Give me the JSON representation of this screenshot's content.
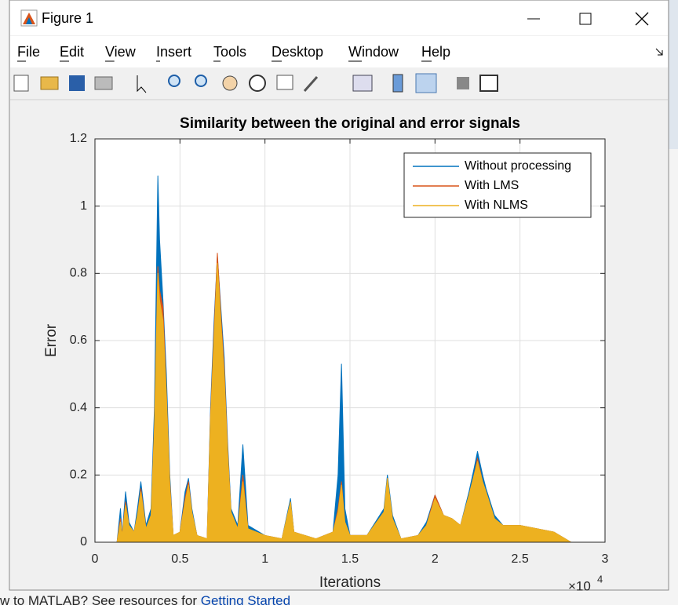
{
  "window": {
    "title": "Figure 1",
    "menu": [
      "File",
      "Edit",
      "View",
      "Insert",
      "Tools",
      "Desktop",
      "Window",
      "Help"
    ]
  },
  "background_text": {
    "prefix": "w to MATLAB? See resources for ",
    "link": "Getting Started"
  },
  "chart_data": {
    "type": "area",
    "title": "Similarity between the original and error signals",
    "x_label": "Iterations",
    "y_label": "Error",
    "x_multiplier": "×10",
    "x_exponent": "4",
    "xlim": [
      0,
      3
    ],
    "xticks": [
      0,
      0.5,
      1,
      1.5,
      2,
      2.5,
      3
    ],
    "ylim": [
      0,
      1.2
    ],
    "yticks": [
      0,
      0.2,
      0.4,
      0.6,
      0.8,
      1,
      1.2
    ],
    "grid": true,
    "legend": "upper right",
    "x": [
      0,
      0.13,
      0.15,
      0.16,
      0.18,
      0.2,
      0.23,
      0.25,
      0.27,
      0.3,
      0.33,
      0.35,
      0.37,
      0.38,
      0.4,
      0.42,
      0.44,
      0.46,
      0.5,
      0.53,
      0.55,
      0.57,
      0.6,
      0.66,
      0.68,
      0.7,
      0.72,
      0.74,
      0.76,
      0.78,
      0.8,
      0.84,
      0.87,
      0.9,
      1.0,
      1.1,
      1.15,
      1.17,
      1.3,
      1.4,
      1.43,
      1.45,
      1.47,
      1.5,
      1.6,
      1.7,
      1.72,
      1.75,
      1.8,
      1.9,
      1.95,
      2.0,
      2.05,
      2.1,
      2.15,
      2.2,
      2.23,
      2.25,
      2.28,
      2.3,
      2.35,
      2.4,
      2.5,
      2.6,
      2.7,
      2.8,
      3.0
    ],
    "series": [
      {
        "name": "Without processing",
        "color": "#0072BD",
        "values": [
          0,
          0,
          0.1,
          0.02,
          0.15,
          0.06,
          0.03,
          0.1,
          0.18,
          0.05,
          0.1,
          0.4,
          1.09,
          0.9,
          0.72,
          0.5,
          0.2,
          0.02,
          0.03,
          0.15,
          0.19,
          0.1,
          0.02,
          0.01,
          0.4,
          0.65,
          0.85,
          0.7,
          0.55,
          0.3,
          0.1,
          0.05,
          0.29,
          0.05,
          0.02,
          0.01,
          0.13,
          0.03,
          0.01,
          0.03,
          0.2,
          0.53,
          0.1,
          0.02,
          0.02,
          0.1,
          0.2,
          0.08,
          0.01,
          0.02,
          0.06,
          0.14,
          0.08,
          0.07,
          0.05,
          0.15,
          0.22,
          0.27,
          0.2,
          0.16,
          0.08,
          0.05,
          0.05,
          0.04,
          0.03,
          0,
          0
        ]
      },
      {
        "name": "With LMS",
        "color": "#D95319",
        "values": [
          0,
          0,
          0.07,
          0.02,
          0.12,
          0.05,
          0.03,
          0.08,
          0.16,
          0.04,
          0.08,
          0.35,
          0.82,
          0.75,
          0.7,
          0.45,
          0.18,
          0.02,
          0.03,
          0.13,
          0.18,
          0.09,
          0.02,
          0.01,
          0.38,
          0.62,
          0.86,
          0.68,
          0.52,
          0.28,
          0.09,
          0.04,
          0.2,
          0.04,
          0.02,
          0.01,
          0.12,
          0.03,
          0.01,
          0.03,
          0.1,
          0.18,
          0.06,
          0.02,
          0.02,
          0.09,
          0.19,
          0.07,
          0.01,
          0.02,
          0.05,
          0.14,
          0.08,
          0.07,
          0.05,
          0.14,
          0.2,
          0.25,
          0.18,
          0.15,
          0.07,
          0.05,
          0.05,
          0.04,
          0.03,
          0,
          0
        ]
      },
      {
        "name": "With NLMS",
        "color": "#EDB120",
        "values": [
          0,
          0,
          0.06,
          0.02,
          0.11,
          0.05,
          0.03,
          0.08,
          0.15,
          0.04,
          0.08,
          0.34,
          0.8,
          0.72,
          0.66,
          0.44,
          0.17,
          0.02,
          0.03,
          0.12,
          0.17,
          0.09,
          0.02,
          0.01,
          0.37,
          0.6,
          0.83,
          0.66,
          0.5,
          0.27,
          0.09,
          0.04,
          0.18,
          0.04,
          0.02,
          0.01,
          0.12,
          0.03,
          0.01,
          0.03,
          0.09,
          0.17,
          0.06,
          0.02,
          0.02,
          0.09,
          0.19,
          0.07,
          0.01,
          0.02,
          0.05,
          0.13,
          0.08,
          0.07,
          0.05,
          0.14,
          0.2,
          0.24,
          0.18,
          0.15,
          0.07,
          0.05,
          0.05,
          0.04,
          0.03,
          0,
          0
        ]
      }
    ]
  }
}
